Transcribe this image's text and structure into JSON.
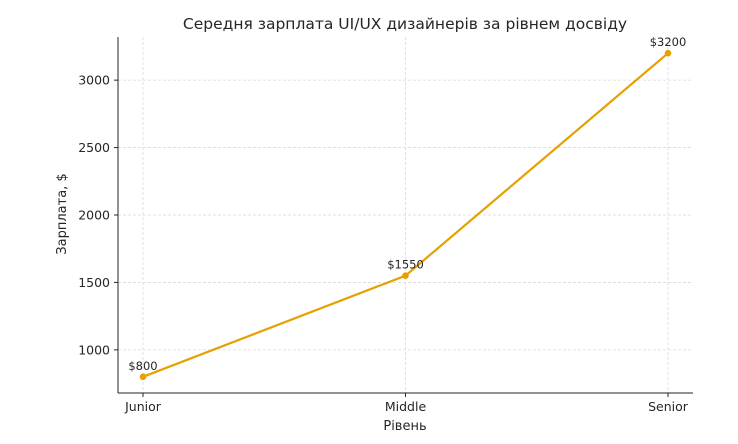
{
  "chart_data": {
    "type": "line",
    "title": "Середня зарплата UI/UX дизайнерів за рівнем досвіду",
    "xlabel": "Рівень",
    "ylabel": "Зарплата, $",
    "categories": [
      "Junior",
      "Middle",
      "Senior"
    ],
    "series": [
      {
        "values": [
          800,
          1550,
          3200
        ],
        "data_labels": [
          "$800",
          "$1550",
          "$3200"
        ],
        "color": "#e6a000"
      }
    ],
    "ylim": [
      680,
      3320
    ],
    "yticks": [
      1000,
      1500,
      2000,
      2500,
      3000
    ],
    "ytick_labels": [
      "1000",
      "1500",
      "2000",
      "2500",
      "3000"
    ],
    "grid": true,
    "marker": "circle"
  }
}
